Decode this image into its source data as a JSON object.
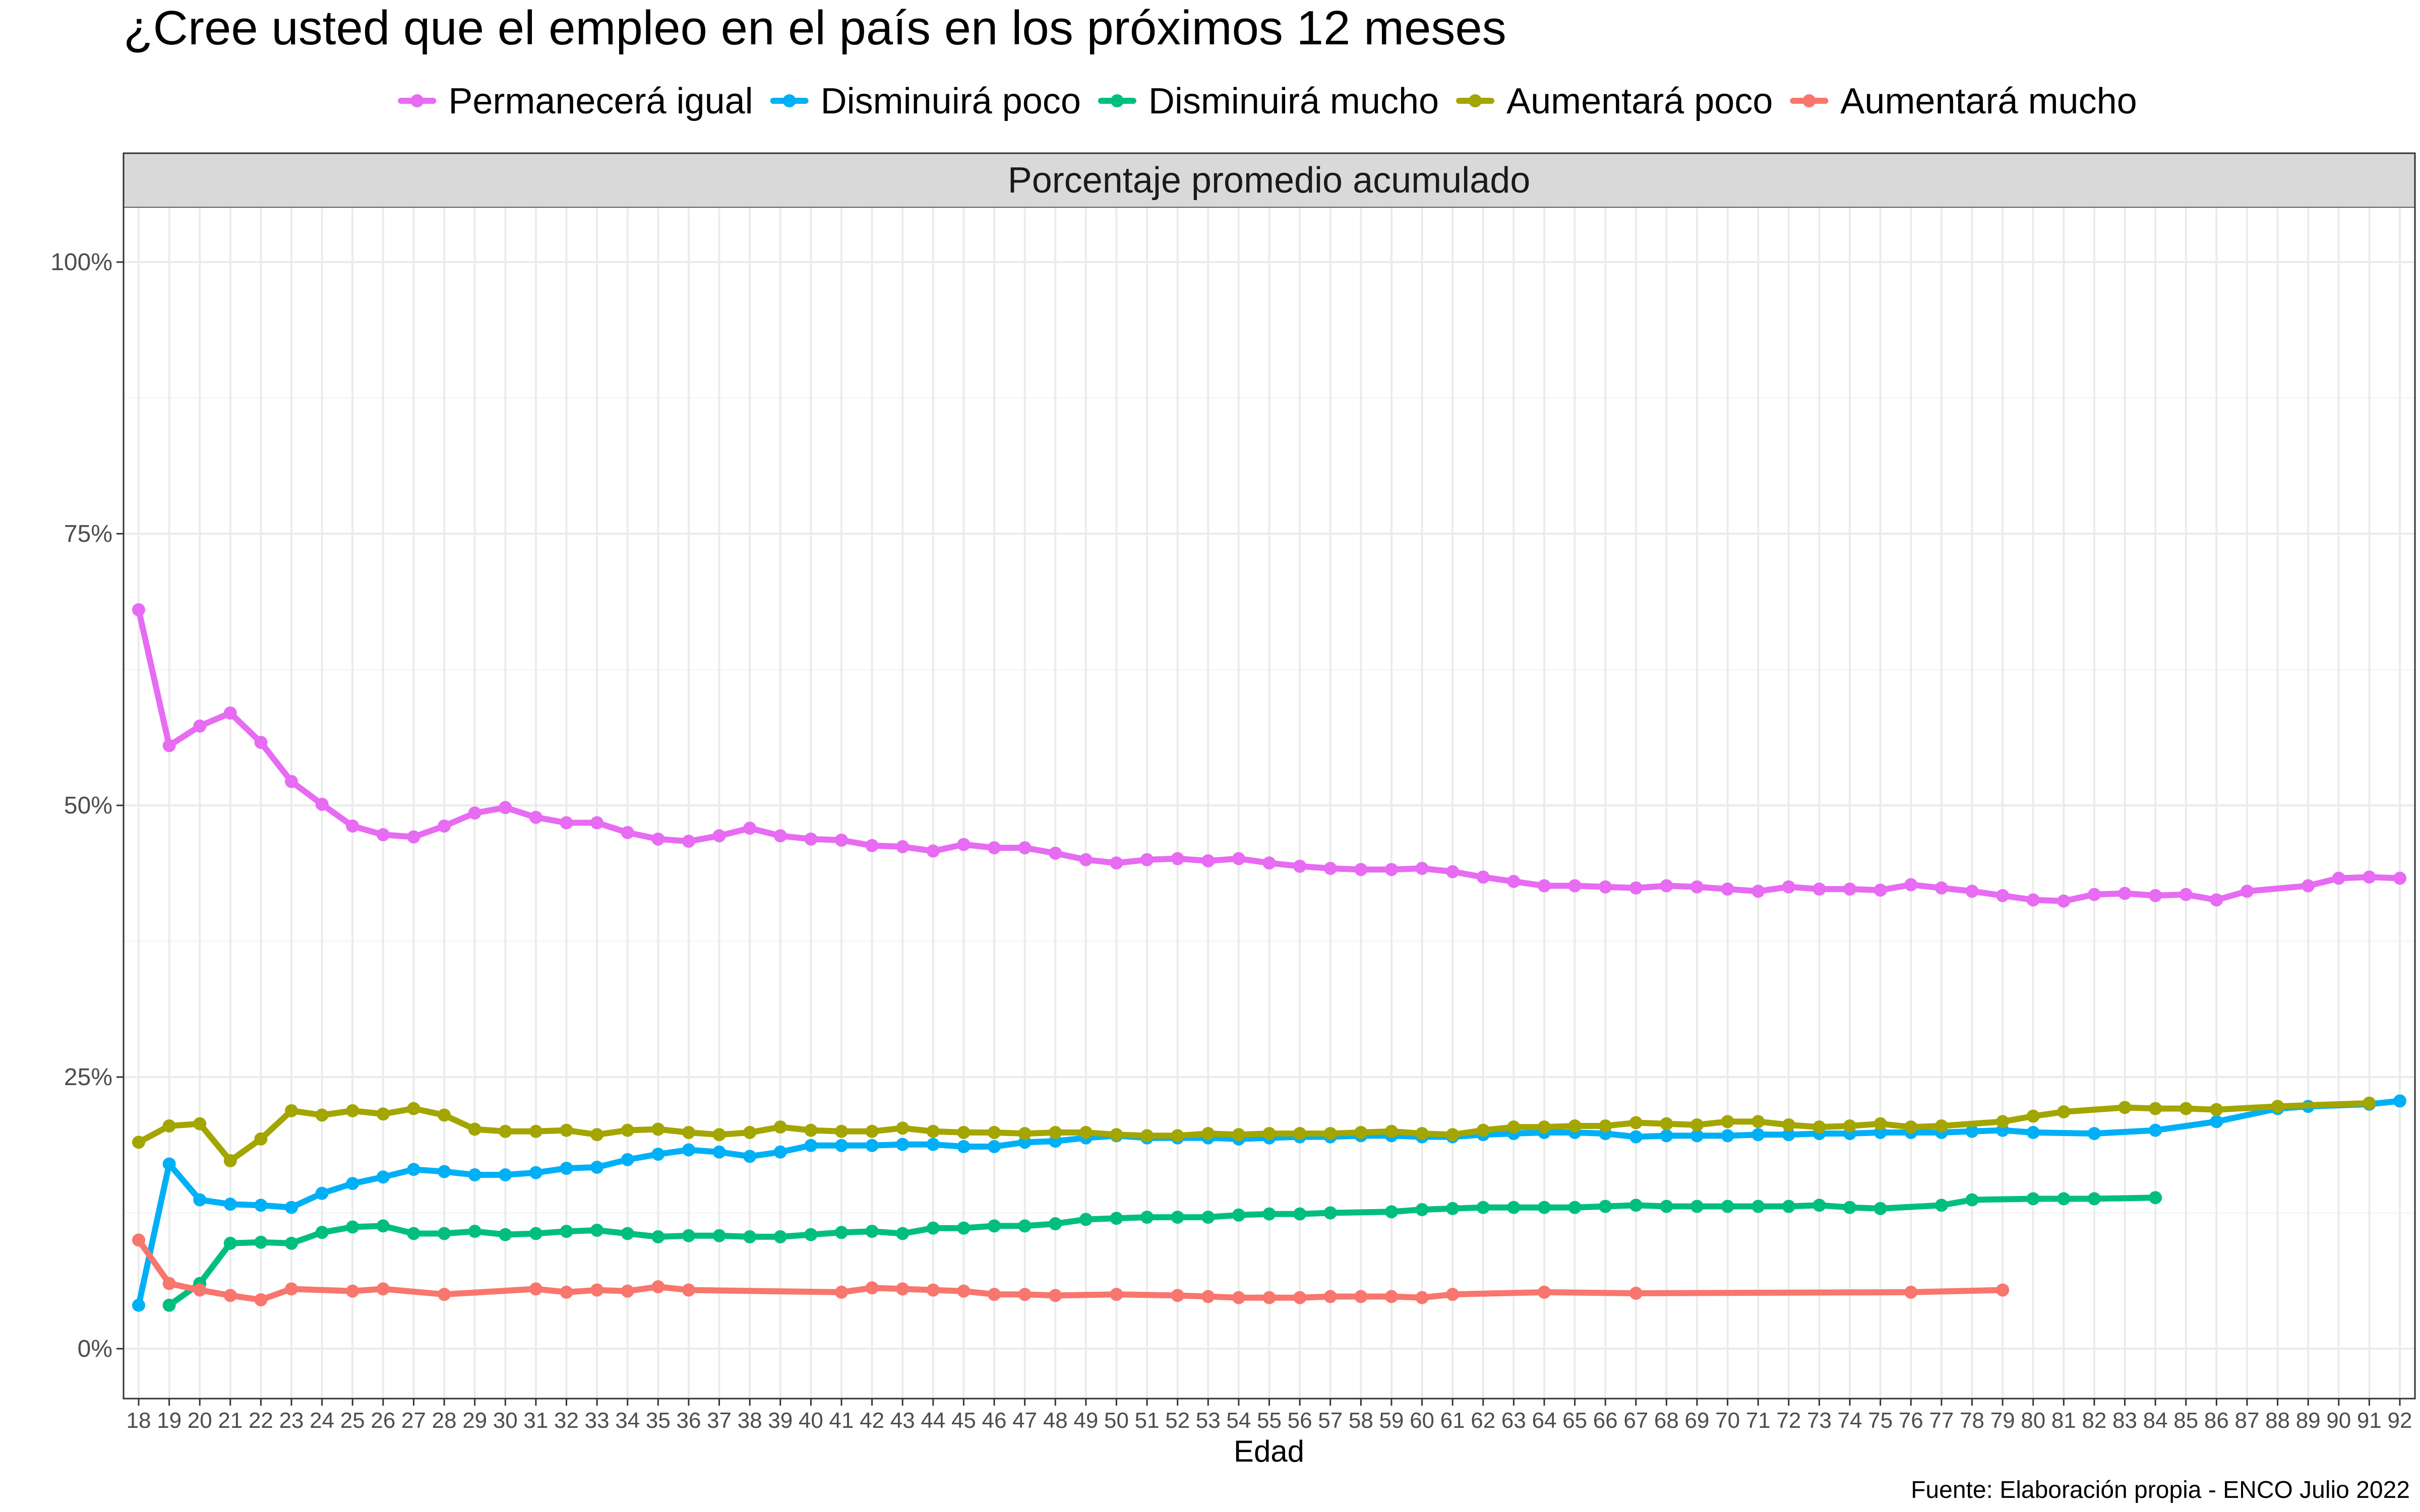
{
  "chart_data": {
    "type": "line",
    "title": "¿Cree usted que el empleo en el país en los próximos 12 meses",
    "facet_label": "Porcentaje promedio acumulado",
    "xlabel": "Edad",
    "ylabel": "",
    "caption": "Fuente: Elaboración propia - ENCO Julio 2022",
    "ylim": [
      0,
      1
    ],
    "y_ticks": [
      0,
      0.25,
      0.5,
      0.75,
      1
    ],
    "y_tick_labels": [
      "0%",
      "25%",
      "50%",
      "75%",
      "100%"
    ],
    "x_categories": [
      "18",
      "19",
      "20",
      "21",
      "22",
      "23",
      "24",
      "25",
      "26",
      "27",
      "28",
      "29",
      "30",
      "31",
      "32",
      "33",
      "34",
      "35",
      "36",
      "37",
      "38",
      "39",
      "40",
      "41",
      "42",
      "43",
      "44",
      "45",
      "46",
      "47",
      "48",
      "49",
      "50",
      "51",
      "52",
      "53",
      "54",
      "55",
      "56",
      "57",
      "58",
      "59",
      "60",
      "61",
      "62",
      "63",
      "64",
      "65",
      "66",
      "67",
      "68",
      "69",
      "70",
      "71",
      "72",
      "73",
      "74",
      "75",
      "76",
      "77",
      "78",
      "79",
      "80",
      "81",
      "82",
      "83",
      "84",
      "85",
      "86",
      "87",
      "88",
      "89",
      "90",
      "91",
      "92"
    ],
    "legend_position": "top",
    "grid": true,
    "series": [
      {
        "name": "Permanecerá igual",
        "color": "#E76BF3",
        "x": [
          18,
          19,
          20,
          21,
          22,
          23,
          24,
          25,
          26,
          27,
          28,
          29,
          30,
          31,
          32,
          33,
          34,
          35,
          36,
          37,
          38,
          39,
          40,
          41,
          42,
          43,
          44,
          45,
          46,
          47,
          48,
          49,
          50,
          51,
          52,
          53,
          54,
          55,
          56,
          57,
          58,
          59,
          60,
          61,
          62,
          63,
          64,
          65,
          66,
          67,
          68,
          69,
          70,
          71,
          72,
          73,
          74,
          75,
          76,
          77,
          78,
          79,
          80,
          81,
          82,
          83,
          84,
          85,
          86,
          87,
          89,
          90,
          91,
          92
        ],
        "y": [
          0.68,
          0.555,
          0.573,
          0.585,
          0.558,
          0.522,
          0.501,
          0.481,
          0.473,
          0.471,
          0.481,
          0.493,
          0.498,
          0.489,
          0.484,
          0.484,
          0.475,
          0.469,
          0.467,
          0.472,
          0.479,
          0.472,
          0.469,
          0.468,
          0.463,
          0.462,
          0.458,
          0.464,
          0.461,
          0.461,
          0.456,
          0.45,
          0.447,
          0.45,
          0.451,
          0.449,
          0.451,
          0.447,
          0.444,
          0.442,
          0.441,
          0.441,
          0.442,
          0.439,
          0.434,
          0.43,
          0.426,
          0.426,
          0.425,
          0.424,
          0.426,
          0.425,
          0.423,
          0.421,
          0.425,
          0.423,
          0.423,
          0.422,
          0.427,
          0.424,
          0.421,
          0.417,
          0.413,
          0.412,
          0.418,
          0.419,
          0.417,
          0.418,
          0.413,
          0.421,
          0.426,
          0.433,
          0.434,
          0.433
        ]
      },
      {
        "name": "Disminuirá poco",
        "color": "#00B0F6",
        "x": [
          18,
          19,
          20,
          21,
          22,
          23,
          24,
          25,
          26,
          27,
          28,
          29,
          30,
          31,
          32,
          33,
          34,
          35,
          36,
          37,
          38,
          39,
          40,
          41,
          42,
          43,
          44,
          45,
          46,
          47,
          48,
          49,
          50,
          51,
          52,
          53,
          54,
          55,
          56,
          57,
          58,
          59,
          60,
          61,
          62,
          63,
          64,
          65,
          66,
          67,
          68,
          69,
          70,
          71,
          72,
          73,
          74,
          75,
          76,
          77,
          78,
          79,
          80,
          82,
          84,
          86,
          88,
          89,
          91,
          92
        ],
        "y": [
          0.04,
          0.17,
          0.137,
          0.133,
          0.132,
          0.13,
          0.143,
          0.152,
          0.158,
          0.165,
          0.163,
          0.16,
          0.16,
          0.162,
          0.166,
          0.167,
          0.174,
          0.179,
          0.183,
          0.181,
          0.177,
          0.181,
          0.187,
          0.187,
          0.187,
          0.188,
          0.188,
          0.186,
          0.186,
          0.19,
          0.191,
          0.194,
          0.196,
          0.194,
          0.194,
          0.194,
          0.193,
          0.194,
          0.195,
          0.195,
          0.196,
          0.196,
          0.195,
          0.195,
          0.197,
          0.198,
          0.199,
          0.199,
          0.198,
          0.195,
          0.196,
          0.196,
          0.196,
          0.197,
          0.197,
          0.198,
          0.198,
          0.199,
          0.199,
          0.199,
          0.2,
          0.201,
          0.199,
          0.198,
          0.201,
          0.209,
          0.221,
          0.223,
          0.225,
          0.228
        ]
      },
      {
        "name": "Disminuirá mucho",
        "color": "#00BF7D",
        "x": [
          19,
          20,
          21,
          22,
          23,
          24,
          25,
          26,
          27,
          28,
          29,
          30,
          31,
          32,
          33,
          34,
          35,
          36,
          37,
          38,
          39,
          40,
          41,
          42,
          43,
          44,
          45,
          46,
          47,
          48,
          49,
          50,
          51,
          52,
          53,
          54,
          55,
          56,
          57,
          59,
          60,
          61,
          62,
          63,
          64,
          65,
          66,
          67,
          68,
          69,
          70,
          71,
          72,
          73,
          74,
          75,
          77,
          78,
          80,
          81,
          82,
          84
        ],
        "y": [
          0.04,
          0.06,
          0.097,
          0.098,
          0.097,
          0.107,
          0.112,
          0.113,
          0.106,
          0.106,
          0.108,
          0.105,
          0.106,
          0.108,
          0.109,
          0.106,
          0.103,
          0.104,
          0.104,
          0.103,
          0.103,
          0.105,
          0.107,
          0.108,
          0.106,
          0.111,
          0.111,
          0.113,
          0.113,
          0.115,
          0.119,
          0.12,
          0.121,
          0.121,
          0.121,
          0.123,
          0.124,
          0.124,
          0.125,
          0.126,
          0.128,
          0.129,
          0.13,
          0.13,
          0.13,
          0.13,
          0.131,
          0.132,
          0.131,
          0.131,
          0.131,
          0.131,
          0.131,
          0.132,
          0.13,
          0.129,
          0.132,
          0.137,
          0.138,
          0.138,
          0.138,
          0.139
        ]
      },
      {
        "name": "Aumentará poco",
        "color": "#A3A500",
        "x": [
          18,
          19,
          20,
          21,
          22,
          23,
          24,
          25,
          26,
          27,
          28,
          29,
          30,
          31,
          32,
          33,
          34,
          35,
          36,
          37,
          38,
          39,
          40,
          41,
          42,
          43,
          44,
          45,
          46,
          47,
          48,
          49,
          50,
          51,
          52,
          53,
          54,
          55,
          56,
          57,
          58,
          59,
          60,
          61,
          62,
          63,
          64,
          65,
          66,
          67,
          68,
          69,
          70,
          71,
          72,
          73,
          74,
          75,
          76,
          77,
          79,
          80,
          81,
          83,
          84,
          85,
          86,
          88,
          91
        ],
        "y": [
          0.19,
          0.205,
          0.207,
          0.173,
          0.193,
          0.219,
          0.215,
          0.219,
          0.216,
          0.221,
          0.215,
          0.202,
          0.2,
          0.2,
          0.201,
          0.197,
          0.201,
          0.202,
          0.199,
          0.197,
          0.199,
          0.204,
          0.201,
          0.2,
          0.2,
          0.203,
          0.2,
          0.199,
          0.199,
          0.198,
          0.199,
          0.199,
          0.197,
          0.196,
          0.196,
          0.198,
          0.197,
          0.198,
          0.198,
          0.198,
          0.199,
          0.2,
          0.198,
          0.197,
          0.201,
          0.204,
          0.204,
          0.205,
          0.205,
          0.208,
          0.207,
          0.206,
          0.209,
          0.209,
          0.206,
          0.204,
          0.205,
          0.207,
          0.204,
          0.205,
          0.209,
          0.214,
          0.218,
          0.222,
          0.221,
          0.221,
          0.22,
          0.223,
          0.226
        ]
      },
      {
        "name": "Aumentará mucho",
        "color": "#F8766D",
        "x": [
          18,
          19,
          20,
          21,
          22,
          23,
          25,
          26,
          28,
          31,
          32,
          33,
          34,
          35,
          36,
          41,
          42,
          43,
          44,
          45,
          46,
          47,
          48,
          50,
          52,
          53,
          54,
          55,
          56,
          57,
          58,
          59,
          60,
          61,
          64,
          67,
          76,
          79
        ],
        "y": [
          0.1,
          0.06,
          0.054,
          0.049,
          0.045,
          0.055,
          0.053,
          0.055,
          0.05,
          0.055,
          0.052,
          0.054,
          0.053,
          0.057,
          0.054,
          0.052,
          0.056,
          0.055,
          0.054,
          0.053,
          0.05,
          0.05,
          0.049,
          0.05,
          0.049,
          0.048,
          0.047,
          0.047,
          0.047,
          0.048,
          0.048,
          0.048,
          0.047,
          0.05,
          0.052,
          0.051,
          0.052,
          0.054
        ]
      }
    ]
  }
}
